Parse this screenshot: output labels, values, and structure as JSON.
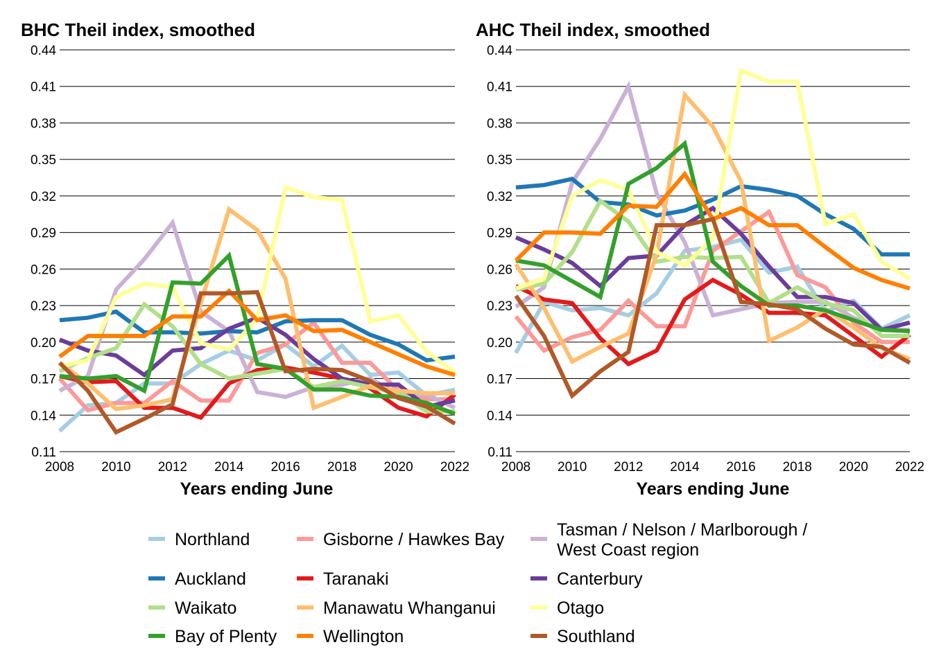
{
  "chart_data": [
    {
      "type": "line",
      "title": "BHC Theil index, smoothed",
      "xlabel": "Years ending June",
      "ylabel": "",
      "x": [
        2008,
        2009,
        2010,
        2011,
        2012,
        2013,
        2014,
        2015,
        2016,
        2017,
        2018,
        2019,
        2020,
        2021,
        2022
      ],
      "x_ticks": [
        "2008",
        "2010",
        "2012",
        "2014",
        "2016",
        "2018",
        "2020",
        "2022"
      ],
      "y_ticks": [
        "0.11",
        "0.14",
        "0.17",
        "0.20",
        "0.23",
        "0.26",
        "0.29",
        "0.32",
        "0.35",
        "0.38",
        "0.41",
        "0.44"
      ],
      "ylim": [
        0.11,
        0.44
      ],
      "grid": "horizontal",
      "series": [
        {
          "name": "Northland",
          "color": "#a6cee3",
          "values": [
            0.127,
            0.148,
            0.15,
            0.166,
            0.166,
            0.182,
            0.193,
            0.185,
            0.198,
            0.18,
            0.197,
            0.173,
            0.175,
            0.156,
            0.161
          ]
        },
        {
          "name": "Gisborne / Hawkes Bay",
          "color": "#fb9a99",
          "values": [
            0.17,
            0.144,
            0.15,
            0.15,
            0.168,
            0.152,
            0.152,
            0.191,
            0.198,
            0.216,
            0.183,
            0.183,
            0.16,
            0.153,
            0.153
          ]
        },
        {
          "name": "Tasman / Nelson / Marlborough / West Coast region",
          "color": "#cab2d6",
          "values": [
            0.16,
            0.172,
            0.243,
            0.268,
            0.298,
            0.225,
            0.209,
            0.159,
            0.155,
            0.163,
            0.165,
            0.17,
            0.157,
            0.157,
            0.146
          ]
        },
        {
          "name": "Auckland",
          "color": "#1f78b4",
          "values": [
            0.218,
            0.22,
            0.225,
            0.208,
            0.208,
            0.207,
            0.209,
            0.208,
            0.217,
            0.218,
            0.218,
            0.206,
            0.198,
            0.185,
            0.188
          ]
        },
        {
          "name": "Taranaki",
          "color": "#e31a1c",
          "values": [
            0.172,
            0.167,
            0.168,
            0.146,
            0.146,
            0.138,
            0.166,
            0.177,
            0.179,
            0.175,
            0.17,
            0.162,
            0.146,
            0.139,
            0.157
          ]
        },
        {
          "name": "Canterbury",
          "color": "#6a3d9a",
          "values": [
            0.202,
            0.193,
            0.189,
            0.173,
            0.193,
            0.195,
            0.211,
            0.22,
            0.206,
            0.186,
            0.17,
            0.165,
            0.165,
            0.147,
            0.152
          ]
        },
        {
          "name": "Waikato",
          "color": "#b2df8a",
          "values": [
            0.176,
            0.187,
            0.195,
            0.231,
            0.213,
            0.182,
            0.17,
            0.174,
            0.178,
            0.163,
            0.168,
            0.163,
            0.158,
            0.143,
            0.143
          ]
        },
        {
          "name": "Manawatu Whanganui",
          "color": "#fdbf6f",
          "values": [
            0.183,
            0.166,
            0.145,
            0.148,
            0.153,
            0.232,
            0.309,
            0.292,
            0.252,
            0.146,
            0.155,
            0.164,
            0.16,
            0.158,
            0.158
          ]
        },
        {
          "name": "Otago",
          "color": "#ffff99",
          "values": [
            0.18,
            0.185,
            0.237,
            0.248,
            0.245,
            0.199,
            0.194,
            0.219,
            0.327,
            0.319,
            0.317,
            0.217,
            0.222,
            0.192,
            0.175
          ]
        },
        {
          "name": "Bay of Plenty",
          "color": "#33a02c",
          "values": [
            0.172,
            0.17,
            0.172,
            0.16,
            0.249,
            0.248,
            0.271,
            0.182,
            0.178,
            0.161,
            0.161,
            0.156,
            0.155,
            0.15,
            0.141
          ]
        },
        {
          "name": "Wellington",
          "color": "#ff7f00",
          "values": [
            0.188,
            0.205,
            0.205,
            0.205,
            0.221,
            0.221,
            0.242,
            0.218,
            0.222,
            0.209,
            0.21,
            0.2,
            0.19,
            0.18,
            0.173
          ]
        },
        {
          "name": "Southland",
          "color": "#b15928",
          "values": [
            0.183,
            0.16,
            0.126,
            0.137,
            0.149,
            0.24,
            0.24,
            0.241,
            0.176,
            0.178,
            0.177,
            0.168,
            0.154,
            0.147,
            0.133
          ]
        }
      ]
    },
    {
      "type": "line",
      "title": "AHC Theil index, smoothed",
      "xlabel": "Years ending June",
      "ylabel": "",
      "x": [
        2008,
        2009,
        2010,
        2011,
        2012,
        2013,
        2014,
        2015,
        2016,
        2017,
        2018,
        2019,
        2020,
        2021,
        2022
      ],
      "x_ticks": [
        "2008",
        "2010",
        "2012",
        "2014",
        "2016",
        "2018",
        "2020",
        "2022"
      ],
      "y_ticks": [
        "0.11",
        "0.14",
        "0.17",
        "0.20",
        "0.23",
        "0.26",
        "0.29",
        "0.32",
        "0.35",
        "0.38",
        "0.41",
        "0.44"
      ],
      "ylim": [
        0.11,
        0.44
      ],
      "grid": "horizontal",
      "series": [
        {
          "name": "Northland",
          "color": "#a6cee3",
          "values": [
            0.191,
            0.233,
            0.226,
            0.228,
            0.222,
            0.24,
            0.275,
            0.278,
            0.284,
            0.257,
            0.262,
            0.225,
            0.234,
            0.211,
            0.222
          ]
        },
        {
          "name": "Gisborne / Hawkes Bay",
          "color": "#fb9a99",
          "values": [
            0.221,
            0.193,
            0.204,
            0.21,
            0.234,
            0.213,
            0.213,
            0.275,
            0.291,
            0.307,
            0.255,
            0.245,
            0.216,
            0.2,
            0.2
          ]
        },
        {
          "name": "Tasman / Nelson / Marlborough / West Coast region",
          "color": "#cab2d6",
          "values": [
            0.229,
            0.245,
            0.331,
            0.367,
            0.41,
            0.322,
            0.282,
            0.222,
            0.227,
            0.232,
            0.233,
            0.233,
            0.22,
            0.21,
            0.21
          ]
        },
        {
          "name": "Auckland",
          "color": "#1f78b4",
          "values": [
            0.327,
            0.329,
            0.334,
            0.315,
            0.313,
            0.304,
            0.308,
            0.317,
            0.328,
            0.325,
            0.32,
            0.305,
            0.293,
            0.272,
            0.272
          ]
        },
        {
          "name": "Taranaki",
          "color": "#e31a1c",
          "values": [
            0.246,
            0.235,
            0.232,
            0.203,
            0.182,
            0.193,
            0.235,
            0.251,
            0.239,
            0.224,
            0.224,
            0.222,
            0.205,
            0.188,
            0.206
          ]
        },
        {
          "name": "Canterbury",
          "color": "#6a3d9a",
          "values": [
            0.286,
            0.276,
            0.265,
            0.246,
            0.269,
            0.271,
            0.296,
            0.31,
            0.289,
            0.262,
            0.237,
            0.237,
            0.232,
            0.21,
            0.216
          ]
        },
        {
          "name": "Waikato",
          "color": "#b2df8a",
          "values": [
            0.243,
            0.248,
            0.274,
            0.316,
            0.299,
            0.266,
            0.27,
            0.269,
            0.27,
            0.232,
            0.245,
            0.232,
            0.226,
            0.205,
            0.205
          ]
        },
        {
          "name": "Manawatu Whanganui",
          "color": "#fdbf6f",
          "values": [
            0.264,
            0.228,
            0.184,
            0.196,
            0.207,
            0.272,
            0.403,
            0.377,
            0.332,
            0.201,
            0.212,
            0.227,
            0.212,
            0.195,
            0.186
          ]
        },
        {
          "name": "Otago",
          "color": "#ffff99",
          "values": [
            0.244,
            0.252,
            0.32,
            0.333,
            0.325,
            0.274,
            0.263,
            0.285,
            0.423,
            0.414,
            0.414,
            0.297,
            0.305,
            0.266,
            0.252
          ]
        },
        {
          "name": "Bay of Plenty",
          "color": "#33a02c",
          "values": [
            0.267,
            0.263,
            0.25,
            0.237,
            0.33,
            0.343,
            0.363,
            0.266,
            0.246,
            0.23,
            0.23,
            0.226,
            0.218,
            0.21,
            0.209
          ]
        },
        {
          "name": "Wellington",
          "color": "#ff7f00",
          "values": [
            0.267,
            0.29,
            0.29,
            0.289,
            0.312,
            0.311,
            0.338,
            0.301,
            0.31,
            0.296,
            0.296,
            0.278,
            0.261,
            0.251,
            0.244
          ]
        },
        {
          "name": "Southland",
          "color": "#b15928",
          "values": [
            0.238,
            0.205,
            0.156,
            0.176,
            0.192,
            0.296,
            0.296,
            0.301,
            0.233,
            0.231,
            0.227,
            0.211,
            0.198,
            0.196,
            0.183
          ]
        }
      ]
    }
  ],
  "legend": [
    {
      "label": "Northland",
      "color": "#a6cee3"
    },
    {
      "label": "Auckland",
      "color": "#1f78b4"
    },
    {
      "label": "Waikato",
      "color": "#b2df8a"
    },
    {
      "label": "Bay of Plenty",
      "color": "#33a02c"
    },
    {
      "label": "Gisborne / Hawkes Bay",
      "color": "#fb9a99"
    },
    {
      "label": "Taranaki",
      "color": "#e31a1c"
    },
    {
      "label": "Manawatu Whanganui",
      "color": "#fdbf6f"
    },
    {
      "label": "Wellington",
      "color": "#ff7f00"
    },
    {
      "lines": [
        "Tasman / Nelson / Marlborough /",
        "West Coast region"
      ],
      "color": "#cab2d6"
    },
    {
      "label": "Canterbury",
      "color": "#6a3d9a"
    },
    {
      "label": "Otago",
      "color": "#ffff99"
    },
    {
      "label": "Southland",
      "color": "#b15928"
    }
  ]
}
